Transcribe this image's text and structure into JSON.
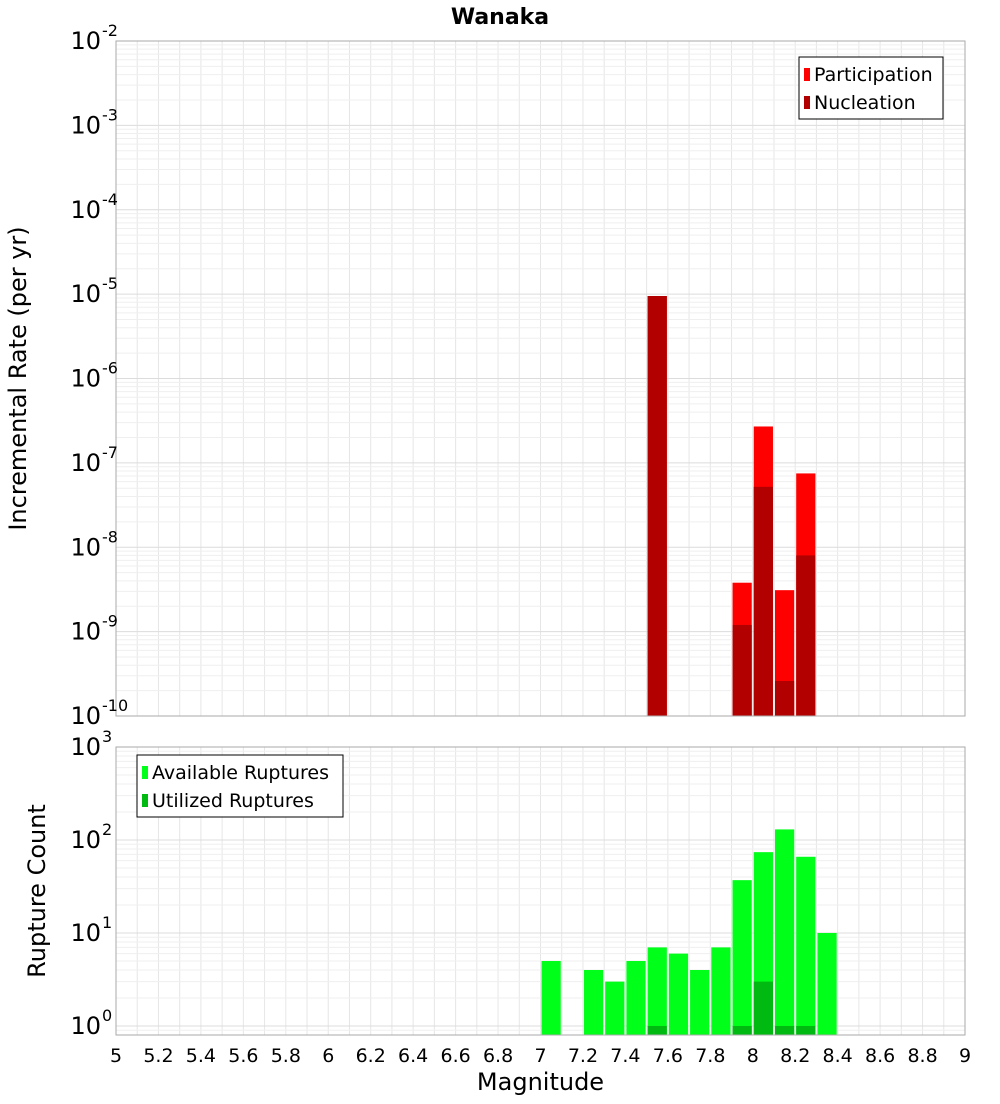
{
  "title": "Wanaka",
  "colors": {
    "participation": "#ff0000",
    "nucleation": "#b20000",
    "available": "#00ff19",
    "utilized": "#00b911",
    "grid": "#e6e6e6",
    "frame": "#aaaaaa"
  },
  "chart_data": [
    {
      "type": "bar",
      "panel": "top",
      "title": "Wanaka",
      "xlabel": "",
      "ylabel": "Incremental Rate (per yr)",
      "yscale": "log",
      "ylim": [
        1e-10,
        0.01
      ],
      "xlim": [
        5,
        9
      ],
      "grid": true,
      "legend_position": "top-right",
      "yticks": [
        {
          "exp": "-10",
          "value": 1e-10
        },
        {
          "exp": "-9",
          "value": 1e-09
        },
        {
          "exp": "-8",
          "value": 1e-08
        },
        {
          "exp": "-7",
          "value": 1e-07
        },
        {
          "exp": "-6",
          "value": 1e-06
        },
        {
          "exp": "-5",
          "value": 1e-05
        },
        {
          "exp": "-4",
          "value": 0.0001
        },
        {
          "exp": "-3",
          "value": 0.001
        },
        {
          "exp": "-2",
          "value": 0.01
        }
      ],
      "series": [
        {
          "name": "Participation",
          "color": "#ff0000",
          "points": [
            {
              "x": 7.55,
              "y": 9.5e-06
            },
            {
              "x": 7.95,
              "y": 3.8e-09
            },
            {
              "x": 8.05,
              "y": 2.7e-07
            },
            {
              "x": 8.15,
              "y": 3.1e-09
            },
            {
              "x": 8.25,
              "y": 7.5e-08
            }
          ]
        },
        {
          "name": "Nucleation",
          "color": "#b20000",
          "points": [
            {
              "x": 7.55,
              "y": 9.5e-06
            },
            {
              "x": 7.95,
              "y": 1.2e-09
            },
            {
              "x": 8.05,
              "y": 5.2e-08
            },
            {
              "x": 8.15,
              "y": 2.6e-10
            },
            {
              "x": 8.25,
              "y": 8e-09
            }
          ]
        }
      ]
    },
    {
      "type": "bar",
      "panel": "bottom",
      "title": "",
      "xlabel": "Magnitude",
      "ylabel": "Rupture Count",
      "yscale": "log",
      "ylim": [
        0.8,
        1000
      ],
      "xlim": [
        5,
        9
      ],
      "grid": true,
      "legend_position": "top-left",
      "yticks": [
        {
          "exp": "0",
          "value": 1
        },
        {
          "exp": "1",
          "value": 10
        },
        {
          "exp": "2",
          "value": 100
        },
        {
          "exp": "3",
          "value": 1000
        }
      ],
      "xticks": [
        "5",
        "5.2",
        "5.4",
        "5.6",
        "5.8",
        "6",
        "6.2",
        "6.4",
        "6.6",
        "6.8",
        "7",
        "7.2",
        "7.4",
        "7.6",
        "7.8",
        "8",
        "8.2",
        "8.4",
        "8.6",
        "8.8",
        "9"
      ],
      "series": [
        {
          "name": "Available Ruptures",
          "color": "#00ff19",
          "points": [
            {
              "x": 7.05,
              "y": 5
            },
            {
              "x": 7.25,
              "y": 4
            },
            {
              "x": 7.35,
              "y": 3
            },
            {
              "x": 7.45,
              "y": 5
            },
            {
              "x": 7.55,
              "y": 7
            },
            {
              "x": 7.65,
              "y": 6
            },
            {
              "x": 7.75,
              "y": 4
            },
            {
              "x": 7.85,
              "y": 7
            },
            {
              "x": 7.95,
              "y": 37
            },
            {
              "x": 8.05,
              "y": 74
            },
            {
              "x": 8.15,
              "y": 130
            },
            {
              "x": 8.25,
              "y": 66
            },
            {
              "x": 8.35,
              "y": 10
            }
          ]
        },
        {
          "name": "Utilized Ruptures",
          "color": "#00b911",
          "points": [
            {
              "x": 7.55,
              "y": 1
            },
            {
              "x": 7.95,
              "y": 1
            },
            {
              "x": 8.05,
              "y": 3
            },
            {
              "x": 8.15,
              "y": 1
            },
            {
              "x": 8.25,
              "y": 1
            }
          ]
        }
      ]
    }
  ]
}
